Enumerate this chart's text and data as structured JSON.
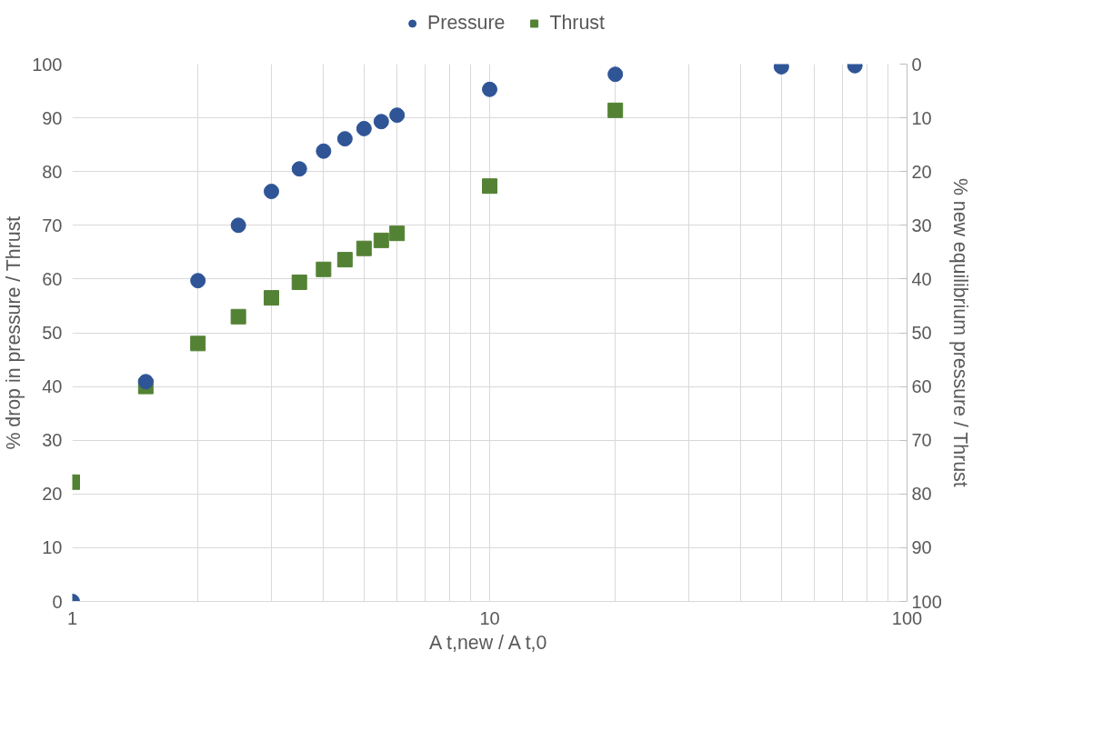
{
  "chart_data": {
    "type": "scatter",
    "xlabel": "A t,new / A t,0",
    "ylabel": "% drop in pressure / Thrust",
    "y2label": "% new equilibrium pressure / Thrust",
    "log": "x",
    "grid": true,
    "legend": "top",
    "xlim": [
      1,
      100
    ],
    "xticks": [
      1,
      {
        "value": 2,
        "label": null
      },
      {
        "value": 3,
        "label": null
      },
      {
        "value": 4,
        "label": null
      },
      {
        "value": 5,
        "label": null
      },
      {
        "value": 6,
        "label": null
      },
      {
        "value": 7,
        "label": null
      },
      {
        "value": 8,
        "label": null
      },
      {
        "value": 9,
        "label": null
      },
      10,
      {
        "value": 20,
        "label": null
      },
      {
        "value": 30,
        "label": null
      },
      {
        "value": 40,
        "label": null
      },
      {
        "value": 50,
        "label": null
      },
      {
        "value": 60,
        "label": null
      },
      {
        "value": 70,
        "label": null
      },
      {
        "value": 80,
        "label": null
      },
      {
        "value": 90,
        "label": null
      },
      100
    ],
    "ylim": [
      0,
      100
    ],
    "yticks": [
      0,
      10,
      20,
      30,
      40,
      50,
      60,
      70,
      80,
      90,
      100
    ],
    "y2lim": [
      100,
      0
    ],
    "y2ticks": [
      0,
      10,
      20,
      30,
      40,
      50,
      60,
      70,
      80,
      90,
      100
    ],
    "series": [
      {
        "name": "Pressure",
        "color": "#2f5597",
        "marker": "circle",
        "x": [
          1,
          1.5,
          2,
          2.5,
          3,
          3.5,
          4,
          4.5,
          5,
          5.5,
          6,
          10,
          20,
          50,
          75
        ],
        "values": [
          0,
          40.9,
          59.7,
          70,
          76.3,
          80.5,
          83.8,
          86.1,
          88,
          89.3,
          90.5,
          95.3,
          98.1,
          99.5,
          99.7
        ]
      },
      {
        "name": "Thrust",
        "color": "#548235",
        "marker": "square",
        "x": [
          1,
          1.5,
          2,
          2.5,
          3,
          3.5,
          4,
          4.5,
          5,
          5.5,
          6,
          10,
          20
        ],
        "values": [
          22.2,
          40,
          48,
          53,
          56.5,
          59.4,
          61.8,
          63.6,
          65.7,
          67.2,
          68.5,
          77.3,
          91.4
        ]
      }
    ]
  }
}
